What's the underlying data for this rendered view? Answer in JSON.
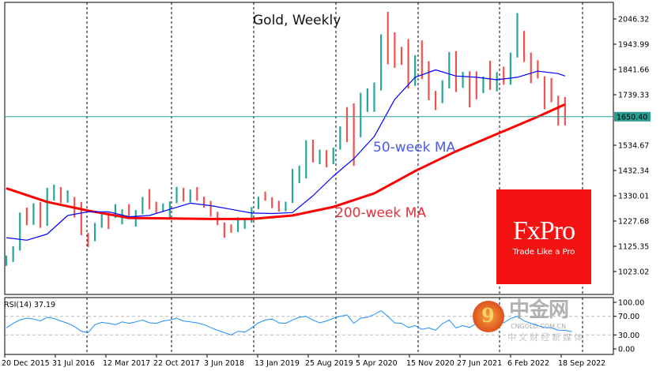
{
  "chart_data": [
    {
      "type": "bar",
      "subtype": "ohlc-monthly-approximation-of-weekly-bars",
      "title": "Gold, Weekly",
      "months_start": "2015-12",
      "close": [
        1068,
        1118,
        1238,
        1235,
        1292,
        1215,
        1320,
        1350,
        1308,
        1315,
        1275,
        1175,
        1150,
        1210,
        1250,
        1248,
        1268,
        1268,
        1242,
        1268,
        1320,
        1280,
        1270,
        1275,
        1302,
        1345,
        1318,
        1325,
        1315,
        1298,
        1252,
        1225,
        1200,
        1192,
        1215,
        1222,
        1280,
        1320,
        1315,
        1292,
        1284,
        1305,
        1410,
        1413,
        1520,
        1472,
        1512,
        1463,
        1517,
        1587,
        1585,
        1577,
        1686,
        1730,
        1780,
        1975,
        1968,
        1886,
        1879,
        1776,
        1895,
        1847,
        1733,
        1708,
        1768,
        1905,
        1770,
        1814,
        1813,
        1757,
        1783,
        1774,
        1829,
        1797,
        1908,
        1937,
        1897,
        1837,
        1807,
        1765,
        1711,
        1660,
        1650
      ],
      "high": [
        1088,
        1125,
        1262,
        1282,
        1300,
        1305,
        1362,
        1375,
        1365,
        1352,
        1325,
        1305,
        1180,
        1220,
        1264,
        1262,
        1296,
        1275,
        1296,
        1272,
        1325,
        1357,
        1306,
        1299,
        1307,
        1366,
        1362,
        1355,
        1365,
        1326,
        1309,
        1265,
        1222,
        1214,
        1243,
        1237,
        1284,
        1326,
        1347,
        1324,
        1310,
        1306,
        1439,
        1452,
        1555,
        1557,
        1517,
        1515,
        1525,
        1611,
        1689,
        1704,
        1747,
        1765,
        1789,
        1984,
        2075,
        1992,
        1933,
        1965,
        1900,
        1959,
        1875,
        1755,
        1798,
        1912,
        1916,
        1832,
        1834,
        1834,
        1813,
        1877,
        1831,
        1853,
        1910,
        2070,
        1998,
        1910,
        1879,
        1814,
        1807,
        1735,
        1730
      ],
      "low": [
        1046,
        1062,
        1108,
        1210,
        1212,
        1200,
        1208,
        1310,
        1300,
        1302,
        1242,
        1170,
        1122,
        1146,
        1200,
        1195,
        1240,
        1214,
        1236,
        1205,
        1255,
        1275,
        1260,
        1264,
        1236,
        1300,
        1307,
        1303,
        1310,
        1282,
        1245,
        1211,
        1160,
        1180,
        1183,
        1196,
        1221,
        1276,
        1310,
        1280,
        1266,
        1267,
        1301,
        1381,
        1400,
        1465,
        1458,
        1445,
        1458,
        1517,
        1547,
        1451,
        1567,
        1670,
        1670,
        1757,
        1863,
        1848,
        1860,
        1764,
        1775,
        1802,
        1717,
        1677,
        1705,
        1765,
        1750,
        1767,
        1688,
        1721,
        1746,
        1759,
        1753,
        1780,
        1780,
        1890,
        1872,
        1786,
        1805,
        1680,
        1709,
        1614,
        1615
      ],
      "ma50": {
        "label": "50-week MA",
        "points": [
          [
            "2015-12",
            1160
          ],
          [
            "2016-03",
            1150
          ],
          [
            "2016-06",
            1175
          ],
          [
            "2016-09",
            1250
          ],
          [
            "2016-12",
            1265
          ],
          [
            "2017-03",
            1265
          ],
          [
            "2017-06",
            1245
          ],
          [
            "2017-09",
            1250
          ],
          [
            "2017-12",
            1275
          ],
          [
            "2018-03",
            1300
          ],
          [
            "2018-06",
            1290
          ],
          [
            "2018-09",
            1275
          ],
          [
            "2018-12",
            1260
          ],
          [
            "2019-03",
            1258
          ],
          [
            "2019-06",
            1262
          ],
          [
            "2019-09",
            1330
          ],
          [
            "2019-12",
            1410
          ],
          [
            "2020-03",
            1480
          ],
          [
            "2020-06",
            1570
          ],
          [
            "2020-09",
            1720
          ],
          [
            "2020-12",
            1810
          ],
          [
            "2021-03",
            1840
          ],
          [
            "2021-06",
            1815
          ],
          [
            "2021-09",
            1810
          ],
          [
            "2021-12",
            1800
          ],
          [
            "2022-03",
            1810
          ],
          [
            "2022-06",
            1835
          ],
          [
            "2022-09",
            1825
          ],
          [
            "2022-10",
            1815
          ]
        ]
      },
      "ma200": {
        "label": "200-week MA",
        "points": [
          [
            "2015-12",
            1360
          ],
          [
            "2016-06",
            1305
          ],
          [
            "2016-12",
            1270
          ],
          [
            "2017-06",
            1240
          ],
          [
            "2017-12",
            1238
          ],
          [
            "2018-06",
            1236
          ],
          [
            "2018-12",
            1236
          ],
          [
            "2019-06",
            1250
          ],
          [
            "2019-12",
            1285
          ],
          [
            "2020-06",
            1340
          ],
          [
            "2020-12",
            1430
          ],
          [
            "2021-06",
            1510
          ],
          [
            "2021-12",
            1580
          ],
          [
            "2022-06",
            1650
          ],
          [
            "2022-10",
            1700
          ]
        ]
      },
      "current_price": "1650.40",
      "y_ticks": [
        "2046.32",
        "1943.99",
        "1841.66",
        "1739.33",
        "1534.67",
        "1432.34",
        "1330.01",
        "1227.68",
        "1125.35",
        "1023.02"
      ],
      "ylim": [
        960,
        2110
      ],
      "x_ticks": [
        "20 Dec 2015",
        "31 Jul 2016",
        "12 Mar 2017",
        "22 Oct 2017",
        "3 Jun 2018",
        "13 Jan 2019",
        "25 Aug 2019",
        "5 Apr 2020",
        "15 Nov 2020",
        "27 Jun 2021",
        "6 Feb 2022",
        "18 Sep 2022"
      ],
      "colors": {
        "up": "#26a69a",
        "down": "#ef5350",
        "ma50": "#0000ff",
        "ma200": "#ff0000",
        "ma50_label": "#4a5be0",
        "ma200_label": "#e8303a",
        "price_line": "#2a9d8f"
      },
      "grid": "vertical dashed"
    },
    {
      "type": "line",
      "label": "RSI(14) 37.19",
      "ylim": [
        0,
        100
      ],
      "y_ticks": [
        "100.00",
        "70.00",
        "30.00",
        "0.00"
      ],
      "levels": [
        70,
        30
      ],
      "values": [
        45,
        55,
        62,
        66,
        64,
        60,
        68,
        65,
        60,
        55,
        48,
        38,
        35,
        52,
        57,
        55,
        52,
        58,
        55,
        58,
        62,
        56,
        55,
        60,
        62,
        66,
        60,
        58,
        56,
        52,
        46,
        40,
        35,
        30,
        38,
        36,
        45,
        56,
        62,
        64,
        56,
        55,
        62,
        68,
        70,
        62,
        56,
        60,
        66,
        70,
        73,
        55,
        66,
        68,
        74,
        82,
        70,
        56,
        55,
        46,
        50,
        42,
        45,
        40,
        54,
        62,
        45,
        50,
        46,
        55,
        50,
        55,
        58,
        56,
        65,
        70,
        60,
        55,
        50,
        46,
        45,
        40,
        40,
        37
      ],
      "color": "#1e90ff"
    }
  ],
  "branding": {
    "fxpro_name": "FxPro",
    "fxpro_tagline": "Trade Like a Pro",
    "watermark_glyph": "9",
    "watermark_name": "中金网",
    "watermark_domain": "CNGOLD.COM.CN",
    "watermark_sub": "中文财经新媒体"
  }
}
